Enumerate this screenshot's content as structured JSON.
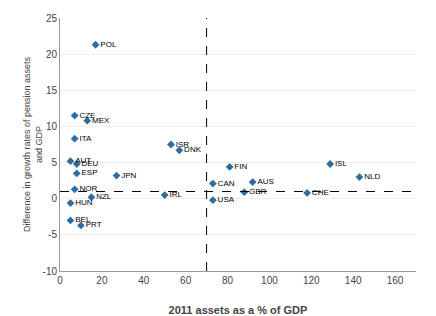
{
  "chart_data": {
    "type": "scatter",
    "x": [
      17,
      7,
      13,
      7,
      53,
      57,
      5,
      8,
      129,
      81,
      8,
      27,
      73,
      92,
      143,
      7,
      88,
      118,
      15,
      50,
      5,
      73,
      5,
      10
    ],
    "values": [
      21.3,
      11.5,
      10.8,
      8.3,
      7.5,
      6.7,
      5.2,
      4.8,
      4.8,
      4.4,
      3.5,
      3.2,
      2.1,
      2.3,
      3.0,
      1.3,
      0.9,
      0.8,
      0.2,
      0.5,
      -0.6,
      -0.2,
      -3.0,
      -3.7
    ],
    "labels": [
      "POL",
      "CZE",
      "MEX",
      "ITA",
      "ISR",
      "DNK",
      "AUT",
      "DEU",
      "ISL",
      "FIN",
      "ESP",
      "JPN",
      "CAN",
      "AUS",
      "NLD",
      "NOR",
      "GBR",
      "CHE",
      "NZL",
      "IRL",
      "HUN",
      "USA",
      "BEL",
      "PRT"
    ],
    "color": "#2E6DA4",
    "marker": "diamond",
    "xlabel": "2011 assets as a % of GDP",
    "ylabel": "Difference in growth rates of pension assets\nand GDP",
    "xlim": [
      0,
      170
    ],
    "ylim": [
      -10,
      25
    ],
    "xticks": [
      0,
      20,
      40,
      60,
      80,
      100,
      120,
      140,
      160
    ],
    "yticks": [
      -10,
      -5,
      0,
      5,
      10,
      15,
      20,
      25
    ],
    "hline_y": 1.0,
    "vline_x": 70,
    "grid": "y"
  }
}
